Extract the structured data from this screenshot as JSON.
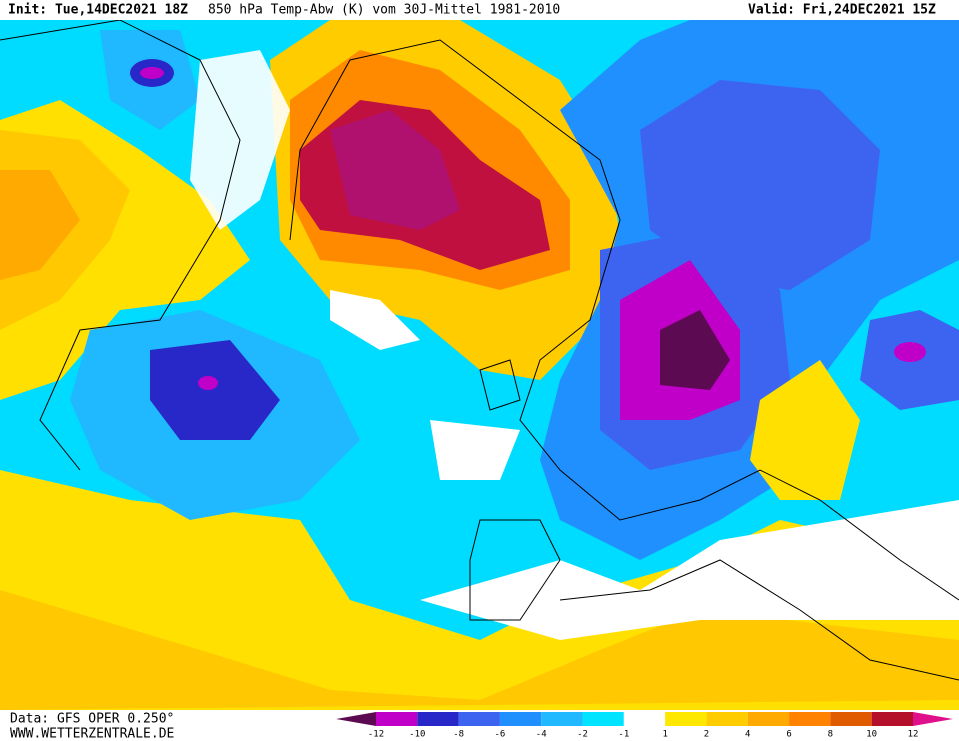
{
  "header": {
    "init": "Init: Tue,14DEC2021 18Z",
    "title": "850 hPa Temp-Abw (K) vom 30J-Mittel 1981-2010",
    "valid": "Valid: Fri,24DEC2021 15Z"
  },
  "footer": {
    "source": "Data: GFS OPER 0.250°",
    "site": "WWW.WETTERZENTRALE.DE"
  },
  "colorbar": {
    "labels": [
      -12,
      -10,
      -8,
      -6,
      -4,
      -2,
      -1,
      1,
      2,
      4,
      6,
      8,
      10,
      12
    ],
    "colors": [
      "#5c0a52",
      "#c000c8",
      "#2828c8",
      "#3c64f0",
      "#2090ff",
      "#20b8ff",
      "#00e4ff",
      "#ffffff",
      "#ffe800",
      "#ffcc00",
      "#ffaa00",
      "#ff8200",
      "#e05a00",
      "#b4102c",
      "#e0108c"
    ]
  }
}
